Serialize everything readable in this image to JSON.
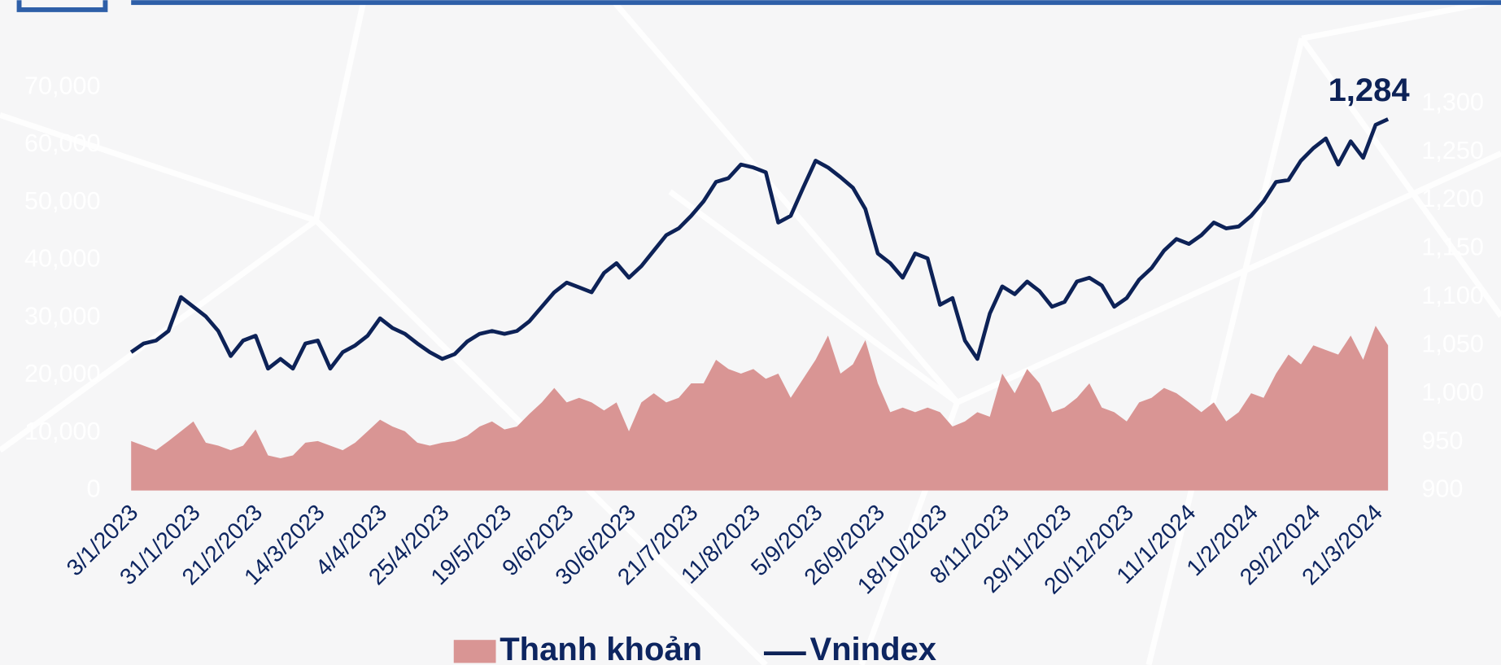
{
  "chart_data": {
    "type": "area-line",
    "annotation": "1,284",
    "categories": [
      "3/1/2023",
      null,
      null,
      null,
      null,
      "31/1/2023",
      null,
      null,
      null,
      null,
      "21/2/2023",
      null,
      null,
      null,
      null,
      "14/3/2023",
      null,
      null,
      null,
      null,
      "4/4/2023",
      null,
      null,
      null,
      null,
      "25/4/2023",
      null,
      null,
      null,
      null,
      "19/5/2023",
      null,
      null,
      null,
      null,
      "9/6/2023",
      null,
      null,
      null,
      null,
      "30/6/2023",
      null,
      null,
      null,
      null,
      "21/7/2023",
      null,
      null,
      null,
      null,
      "11/8/2023",
      null,
      null,
      null,
      null,
      "5/9/2023",
      null,
      null,
      null,
      null,
      "26/9/2023",
      null,
      null,
      null,
      null,
      "18/10/2023",
      null,
      null,
      null,
      null,
      "8/11/2023",
      null,
      null,
      null,
      null,
      "29/11/2023",
      null,
      null,
      null,
      null,
      "20/12/2023",
      null,
      null,
      null,
      null,
      "11/1/2024",
      null,
      null,
      null,
      null,
      "1/2/2024",
      null,
      null,
      null,
      null,
      "29/2/2024",
      null,
      null,
      null,
      null,
      "21/3/2024",
      null
    ],
    "series": [
      {
        "name": "Thanh khoản",
        "color": "#d99594",
        "axis": "y",
        "values": [
          8600,
          7800,
          7000,
          8600,
          10300,
          12000,
          8300,
          7800,
          7000,
          7800,
          10600,
          6100,
          5600,
          6100,
          8300,
          8600,
          7800,
          7000,
          8300,
          10300,
          12300,
          11100,
          10300,
          8300,
          7800,
          8300,
          8600,
          9500,
          11100,
          12000,
          10600,
          11100,
          13300,
          15300,
          17800,
          15300,
          16100,
          15300,
          13900,
          15300,
          10300,
          15300,
          16900,
          15300,
          16100,
          18600,
          18600,
          22700,
          21100,
          20300,
          21100,
          19400,
          20300,
          16100,
          19400,
          22700,
          26900,
          20300,
          21900,
          26100,
          18600,
          13600,
          14400,
          13600,
          14400,
          13600,
          11100,
          12000,
          13600,
          12800,
          20300,
          16900,
          21100,
          18600,
          13600,
          14400,
          16100,
          18600,
          14400,
          13600,
          12000,
          15300,
          16100,
          17800,
          16900,
          15300,
          13600,
          15300,
          12000,
          13600,
          16900,
          16100,
          20300,
          23600,
          21900,
          25200,
          24400,
          23600,
          26900,
          22700,
          28600,
          25200
        ]
      },
      {
        "name": "Vnindex",
        "color": "#0d2257",
        "axis": "y2",
        "values": [
          1043,
          1052,
          1055,
          1065,
          1100,
          1090,
          1080,
          1065,
          1039,
          1055,
          1060,
          1026,
          1036,
          1026,
          1052,
          1055,
          1026,
          1043,
          1050,
          1060,
          1078,
          1068,
          1062,
          1052,
          1043,
          1036,
          1041,
          1054,
          1062,
          1065,
          1062,
          1065,
          1075,
          1090,
          1105,
          1115,
          1110,
          1105,
          1125,
          1135,
          1120,
          1132,
          1148,
          1164,
          1171,
          1184,
          1199,
          1219,
          1223,
          1237,
          1234,
          1229,
          1177,
          1184,
          1213,
          1241,
          1234,
          1224,
          1213,
          1191,
          1145,
          1135,
          1120,
          1145,
          1140,
          1092,
          1099,
          1055,
          1036,
          1083,
          1111,
          1103,
          1116,
          1106,
          1090,
          1095,
          1116,
          1120,
          1112,
          1090,
          1099,
          1118,
          1130,
          1148,
          1160,
          1155,
          1164,
          1177,
          1171,
          1173,
          1184,
          1199,
          1219,
          1221,
          1241,
          1254,
          1264,
          1237,
          1261,
          1244,
          1278,
          1284
        ]
      }
    ],
    "ylim": [
      0,
      70000
    ],
    "yticks": [
      0,
      {
        "value": 10000,
        "label": "10,000"
      },
      {
        "value": 20000,
        "label": "20,000"
      },
      {
        "value": 30000,
        "label": "30,000"
      },
      {
        "value": 40000,
        "label": "40,000"
      },
      {
        "value": 50000,
        "label": "50,000"
      },
      {
        "value": 60000,
        "label": "60,000"
      },
      {
        "value": 70000,
        "label": "70,000"
      }
    ],
    "y2lim": [
      900,
      1300
    ],
    "y2ticks": [
      900,
      950,
      {
        "value": 1000,
        "label": "1,000"
      },
      {
        "value": 1050,
        "label": "1,050"
      },
      {
        "value": 1100,
        "label": "1,100"
      },
      {
        "value": 1150,
        "label": "1,150"
      },
      {
        "value": 1200,
        "label": "1,200"
      },
      {
        "value": 1250,
        "label": "1,250"
      },
      {
        "value": 1300,
        "label": "1,300"
      }
    ]
  }
}
